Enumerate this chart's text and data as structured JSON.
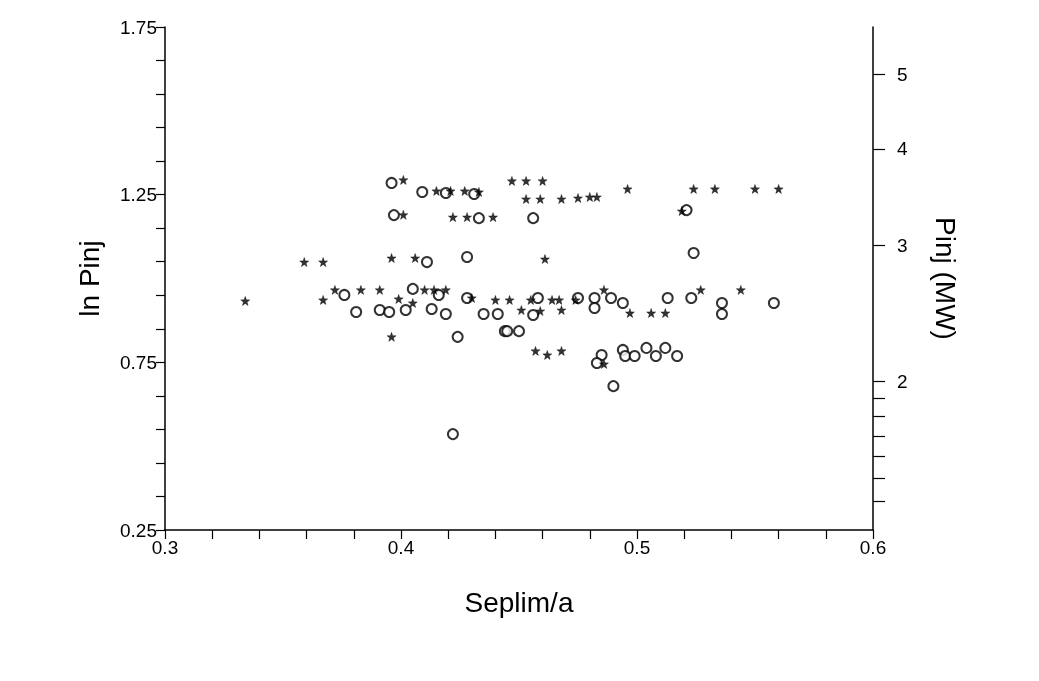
{
  "chart_data": {
    "type": "scatter",
    "xlabel": "Seplim/a",
    "ylabel": "ln Pinj",
    "y2label": "Pinj (MW)",
    "xlim": [
      0.3,
      0.6
    ],
    "xticks": [
      0.3,
      {
        "value": 0.32,
        "label": null
      },
      {
        "value": 0.34,
        "label": null
      },
      {
        "value": 0.36,
        "label": null
      },
      {
        "value": 0.38,
        "label": null
      },
      0.4,
      {
        "value": 0.42,
        "label": null
      },
      {
        "value": 0.44,
        "label": null
      },
      {
        "value": 0.46,
        "label": null
      },
      {
        "value": 0.48,
        "label": null
      },
      0.5,
      {
        "value": 0.52,
        "label": null
      },
      {
        "value": 0.54,
        "label": null
      },
      {
        "value": 0.56,
        "label": null
      },
      {
        "value": 0.58,
        "label": null
      },
      0.6
    ],
    "ylim": [
      0.25,
      1.75
    ],
    "yticks": [
      0.25,
      {
        "value": 0.35,
        "label": null
      },
      {
        "value": 0.45,
        "label": null
      },
      {
        "value": 0.55,
        "label": null
      },
      {
        "value": 0.65,
        "label": null
      },
      0.75,
      {
        "value": 0.85,
        "label": null
      },
      {
        "value": 0.95,
        "label": null
      },
      {
        "value": 1.05,
        "label": null
      },
      {
        "value": 1.15,
        "label": null
      },
      1.25,
      {
        "value": 1.35,
        "label": null
      },
      {
        "value": 1.45,
        "label": null
      },
      {
        "value": 1.55,
        "label": null
      },
      {
        "value": 1.65,
        "label": null
      },
      1.75
    ],
    "y2lim": [
      1.284,
      5.755
    ],
    "y2ticks": [
      {
        "value": 1.4,
        "label": null
      },
      {
        "value": 1.5,
        "label": null
      },
      {
        "value": 1.6,
        "label": null
      },
      {
        "value": 1.7,
        "label": null
      },
      {
        "value": 1.8,
        "label": null
      },
      {
        "value": 1.9,
        "label": null
      },
      2,
      3,
      4,
      5
    ],
    "log": "y2",
    "series": [
      {
        "color": "#000000",
        "marker": "star",
        "x": [
          0.334,
          0.359,
          0.367,
          0.367,
          0.372,
          0.383,
          0.391,
          0.396,
          0.399,
          0.401,
          0.401,
          0.406,
          0.405,
          0.41,
          0.415,
          0.421,
          0.427,
          0.433,
          0.422,
          0.428,
          0.396,
          0.414,
          0.419,
          0.439,
          0.447,
          0.453,
          0.46,
          0.453,
          0.459,
          0.468,
          0.475,
          0.48,
          0.483,
          0.496,
          0.524,
          0.533,
          0.55,
          0.56,
          0.461,
          0.44,
          0.446,
          0.455,
          0.464,
          0.467,
          0.474,
          0.451,
          0.459,
          0.468,
          0.486,
          0.527,
          0.544,
          0.497,
          0.506,
          0.512,
          0.457,
          0.462,
          0.468,
          0.486,
          0.519,
          0.43
        ],
        "values": [
          0.933,
          1.049,
          1.049,
          0.936,
          0.966,
          0.966,
          0.966,
          1.061,
          0.939,
          1.19,
          1.294,
          1.061,
          0.927,
          0.966,
          1.261,
          1.261,
          1.261,
          1.258,
          1.183,
          1.183,
          0.826,
          0.966,
          0.966,
          1.183,
          1.291,
          1.291,
          1.291,
          1.237,
          1.237,
          1.237,
          1.24,
          1.243,
          1.243,
          1.267,
          1.267,
          1.267,
          1.267,
          1.267,
          1.058,
          0.936,
          0.936,
          0.936,
          0.936,
          0.936,
          0.936,
          0.906,
          0.903,
          0.906,
          0.966,
          0.966,
          0.966,
          0.897,
          0.897,
          0.897,
          0.784,
          0.772,
          0.784,
          0.745,
          1.201,
          0.942
        ]
      },
      {
        "color": "#000000",
        "marker": "circle",
        "x": [
          0.396,
          0.397,
          0.411,
          0.428,
          0.409,
          0.419,
          0.431,
          0.433,
          0.456,
          0.521,
          0.524,
          0.376,
          0.405,
          0.416,
          0.428,
          0.381,
          0.391,
          0.395,
          0.402,
          0.413,
          0.419,
          0.435,
          0.441,
          0.444,
          0.424,
          0.422,
          0.445,
          0.45,
          0.458,
          0.456,
          0.475,
          0.482,
          0.482,
          0.489,
          0.494,
          0.513,
          0.523,
          0.536,
          0.536,
          0.558,
          0.485,
          0.483,
          0.494,
          0.495,
          0.499,
          0.504,
          0.508,
          0.512,
          0.517,
          0.49
        ],
        "values": [
          1.285,
          1.189,
          1.049,
          1.064,
          1.258,
          1.255,
          1.252,
          1.18,
          1.18,
          1.204,
          1.076,
          0.951,
          0.969,
          0.951,
          0.942,
          0.9,
          0.906,
          0.9,
          0.906,
          0.909,
          0.894,
          0.894,
          0.894,
          0.843,
          0.826,
          0.536,
          0.843,
          0.843,
          0.942,
          0.891,
          0.942,
          0.942,
          0.912,
          0.942,
          0.927,
          0.942,
          0.942,
          0.927,
          0.894,
          0.927,
          0.772,
          0.748,
          0.787,
          0.769,
          0.769,
          0.793,
          0.769,
          0.793,
          0.769,
          0.679
        ]
      }
    ]
  }
}
